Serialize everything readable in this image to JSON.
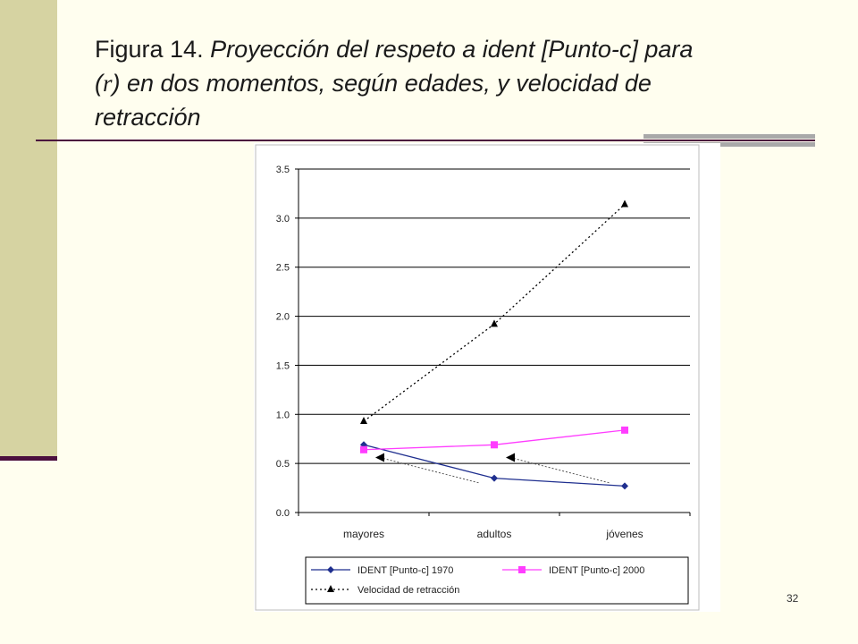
{
  "slide": {
    "title_prefix": "Figura 14.",
    "title_line1_italic": "Proyección del respeto a ident [Punto-c] para",
    "title_line2_open": "(",
    "title_r": "r",
    "title_line2_rest": ") en dos momentos, según edades, y velocidad de",
    "title_line3": "retracción",
    "page_number": "32"
  },
  "colors": {
    "series_1970": "#1f2f8f",
    "series_2000": "#ff3dff",
    "series_velocidad": "#000000",
    "accent": "#4b0f3e",
    "sidebar": "#d6d3a2",
    "background": "#fffeef"
  },
  "chart_data": {
    "type": "line",
    "categories": [
      "mayores",
      "adultos",
      "jóvenes"
    ],
    "ylim": [
      0,
      3.5
    ],
    "yticks": [
      "0.0",
      "0.5",
      "1.0",
      "1.5",
      "2.0",
      "2.5",
      "3.0",
      "3.5"
    ],
    "grid": true,
    "legend_position": "bottom",
    "series": [
      {
        "name": "IDENT [Punto-c] 1970",
        "values": [
          0.69,
          0.35,
          0.27
        ],
        "marker": "diamond",
        "style": "solid"
      },
      {
        "name": "IDENT [Punto-c] 2000",
        "values": [
          0.64,
          0.69,
          0.84
        ],
        "marker": "square",
        "style": "solid"
      },
      {
        "name": "Velocidad de retracción",
        "values": [
          0.93,
          1.92,
          3.14
        ],
        "marker": "triangle",
        "style": "dotted"
      }
    ],
    "annotation_triangles": [
      {
        "from_category": "mayores",
        "to_category": "adultos",
        "y_from": 0.56,
        "y_to": 0.3
      },
      {
        "from_category": "adultos",
        "to_category": "jóvenes",
        "y_from": 0.56,
        "y_to": 0.3
      }
    ]
  }
}
